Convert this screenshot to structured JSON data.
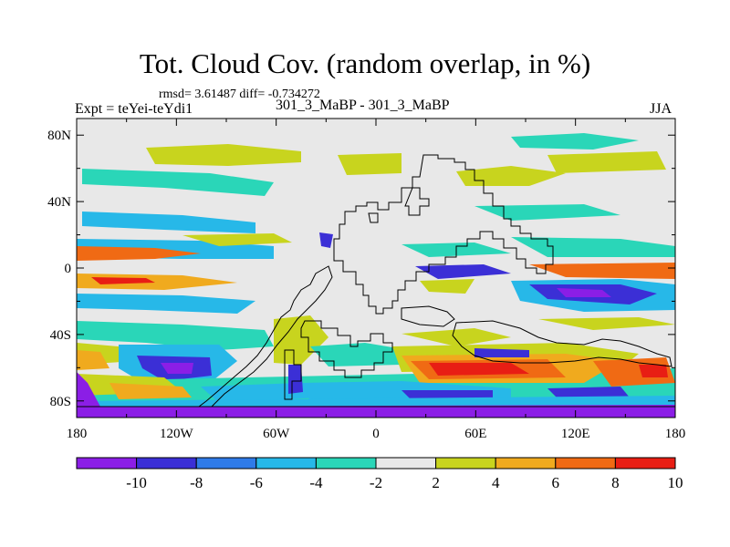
{
  "header": {
    "title": "Tot. Cloud Cov. (random overlap, in %)",
    "stats": "rmsd= 3.61487 diff= -0.734272",
    "experiment": "Expt = teYei-teYdi1",
    "case": "301_3_MaBP - 301_3_MaBP",
    "season": "JJA"
  },
  "axes": {
    "lat_ticks": [
      {
        "value": 80,
        "label": "80N"
      },
      {
        "value": 40,
        "label": "40N"
      },
      {
        "value": 0,
        "label": "0"
      },
      {
        "value": -40,
        "label": "40S"
      },
      {
        "value": -80,
        "label": "80S"
      }
    ],
    "lon_ticks": [
      {
        "value": -180,
        "label": "180"
      },
      {
        "value": -120,
        "label": "120W"
      },
      {
        "value": -60,
        "label": "60W"
      },
      {
        "value": 0,
        "label": "0"
      },
      {
        "value": 60,
        "label": "60E"
      },
      {
        "value": 120,
        "label": "120E"
      },
      {
        "value": 180,
        "label": "180"
      }
    ],
    "lat_range": [
      -90,
      90
    ],
    "lon_range": [
      -180,
      180
    ]
  },
  "colorbar": {
    "labels": [
      "-10",
      "-8",
      "-6",
      "-4",
      "-2",
      "2",
      "4",
      "6",
      "8",
      "10"
    ],
    "colors": [
      "#8b1ee6",
      "#3b2fd6",
      "#2f7be8",
      "#27b8e8",
      "#2ad6b8",
      "#e8e8e8",
      "#c8d41e",
      "#f0aa1e",
      "#f06a14",
      "#e81e14"
    ]
  },
  "fill_colors": {
    "background": "#e8e8e8",
    "strong_neg": "#8b1ee6",
    "neg": "#3b2fd6",
    "mid_neg": "#2f7be8",
    "weak_neg": "#27b8e8",
    "small_neg": "#2ad6b8",
    "small_pos": "#c8d41e",
    "pos": "#f0aa1e",
    "mid_pos": "#f06a14",
    "strong_pos": "#e81e14"
  }
}
